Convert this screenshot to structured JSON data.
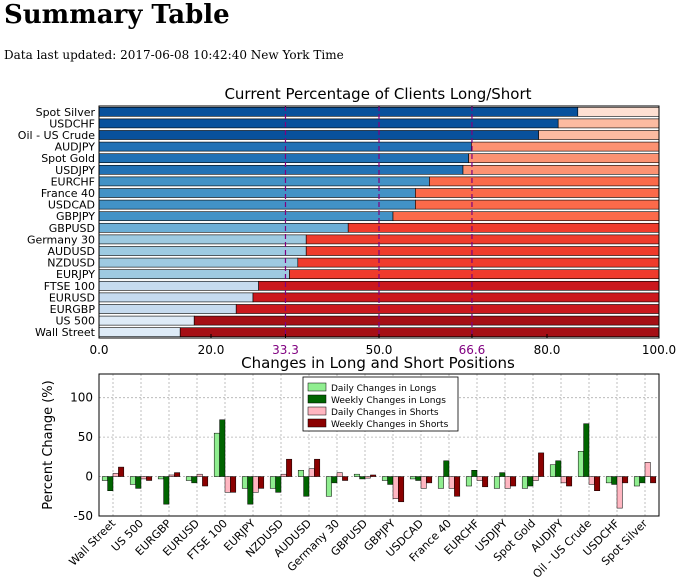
{
  "page": {
    "title": "Summary Table",
    "updated_text": "Data last updated: 2017-06-08 10:42:40 New York Time"
  },
  "chart_data": [
    {
      "type": "bar",
      "orientation": "horizontal",
      "stacked": true,
      "title": "Current Percentage of Clients Long/Short",
      "categories": [
        "Spot Silver",
        "USDCHF",
        "Oil - US Crude",
        "AUDJPY",
        "Spot Gold",
        "USDJPY",
        "EURCHF",
        "France 40",
        "USDCAD",
        "GBPJPY",
        "GBPUSD",
        "Germany 30",
        "AUDUSD",
        "NZDUSD",
        "EURJPY",
        "FTSE 100",
        "EURUSD",
        "EURGBP",
        "US 500",
        "Wall Street"
      ],
      "series": [
        {
          "values": [
            85.5,
            82.0,
            78.5,
            66.5,
            66.0,
            65.0,
            59.0,
            56.5,
            56.5,
            52.5,
            44.5,
            37.0,
            37.0,
            35.5,
            34.0,
            28.5,
            27.5,
            24.5,
            17.0,
            14.5
          ]
        },
        {
          "values": [
            14.5,
            18.0,
            21.5,
            33.5,
            34.0,
            35.0,
            41.0,
            43.5,
            43.5,
            47.5,
            55.5,
            63.0,
            63.0,
            64.5,
            66.0,
            71.5,
            72.5,
            75.5,
            83.0,
            85.5
          ]
        }
      ],
      "xlim": [
        0,
        100
      ],
      "xticks": [
        "0.0",
        "20.0",
        "33.3",
        "50.0",
        "66.6",
        "80.0",
        "100.0"
      ],
      "xtick_values": [
        0,
        20,
        33.3,
        50,
        66.6,
        80,
        100
      ],
      "reference_lines": [
        33.3,
        50,
        66.6
      ],
      "reference_line_color": "#800080",
      "long_colors": [
        "#08519c",
        "#08519c",
        "#08519c",
        "#2171b5",
        "#2171b5",
        "#2171b5",
        "#4292c6",
        "#4292c6",
        "#4292c6",
        "#4292c6",
        "#6baed6",
        "#9ecae1",
        "#9ecae1",
        "#9ecae1",
        "#9ecae1",
        "#c6dbef",
        "#c6dbef",
        "#c6dbef",
        "#deebf7",
        "#deebf7"
      ],
      "short_colors": [
        "#fee0d2",
        "#fcbba1",
        "#fcbba1",
        "#fc9272",
        "#fc9272",
        "#fc9272",
        "#fb6a4a",
        "#fb6a4a",
        "#fb6a4a",
        "#fb6a4a",
        "#ef3b2c",
        "#ef3b2c",
        "#ef3b2c",
        "#ef3b2c",
        "#ef3b2c",
        "#cb181d",
        "#cb181d",
        "#cb181d",
        "#a50f15",
        "#a50f15"
      ]
    },
    {
      "type": "bar",
      "title": "Changes in Long and Short Positions",
      "ylabel": "Percent Change (%)",
      "ylim": [
        -50,
        130
      ],
      "yticks": [
        -50,
        0,
        50,
        100
      ],
      "grid": true,
      "legend": "top-center",
      "categories": [
        "Wall Street",
        "US 500",
        "EURGBP",
        "EURUSD",
        "FTSE 100",
        "EURJPY",
        "NZDUSD",
        "AUDUSD",
        "Germany 30",
        "GBPUSD",
        "GBPJPY",
        "USDCAD",
        "France 40",
        "EURCHF",
        "USDJPY",
        "Spot Gold",
        "AUDJPY",
        "Oil - US Crude",
        "USDCHF",
        "Spot Silver"
      ],
      "series": [
        {
          "name": "Daily Changes in Longs",
          "color": "#90ee90",
          "values": [
            -5,
            -10,
            -3,
            -5,
            55,
            -15,
            -15,
            8,
            -25,
            3,
            -5,
            -3,
            -15,
            -12,
            -15,
            -15,
            15,
            32,
            -8,
            -12
          ]
        },
        {
          "name": "Weekly Changes in Longs",
          "color": "#006400",
          "values": [
            -18,
            -15,
            -35,
            -8,
            72,
            -35,
            -20,
            -25,
            -8,
            -3,
            -10,
            -5,
            20,
            8,
            5,
            -12,
            20,
            67,
            -10,
            -8
          ]
        },
        {
          "name": "Daily Changes in Shorts",
          "color": "#ffb6c1",
          "values": [
            4,
            -3,
            2,
            3,
            -20,
            -20,
            3,
            10,
            5,
            -2,
            -28,
            -15,
            -15,
            -5,
            -15,
            -5,
            -8,
            -10,
            -40,
            18
          ]
        },
        {
          "name": "Weekly Changes in Shorts",
          "color": "#8b0000",
          "values": [
            12,
            -5,
            5,
            -12,
            -20,
            -15,
            22,
            22,
            -5,
            2,
            -32,
            -8,
            -25,
            -13,
            -12,
            30,
            -12,
            -18,
            -8,
            -8
          ]
        }
      ]
    }
  ]
}
